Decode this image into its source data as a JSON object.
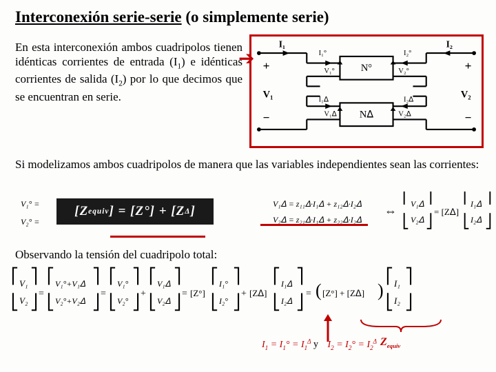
{
  "title_underlined": "Interconexión serie-serie",
  "title_rest": " (o simplemente serie)",
  "para1_html": "En esta interconexión ambos cuadripolos tienen idénticas corrientes de entrada (I<sub>1</sub>) e idénticas corrientes de salida (I<sub>2</sub>) por lo que decimos que se encuentran en serie.",
  "para2_html": "Si modelizamos ambos cuadripolos de manera que las variables independientes sean las corrientes:",
  "obs": "Observando la tensión del cuadripolo total:",
  "zeq_box": "[Z<sub>equiv</sub>] = [Z°] + [Z<sup>Δ</sup>]",
  "zeq_red": "Z<sub>equiv</sub>",
  "footer_i1": "I<sub>1</sub> = I<sub>1</sub>° = I<sub>1</sub><sup>Δ</sup>",
  "footer_y": " y ",
  "footer_i2": "I<sub>2</sub> = I<sub>2</sub>° = I<sub>2</sub><sup>Δ</sup>",
  "diagram": {
    "labels": {
      "I1": "I₁",
      "I2": "I₂",
      "I1o": "I₁°",
      "I2o": "I₂°",
      "I1d": "I₁ᐃ",
      "I2d": "I₂ᐃ",
      "V1": "V₁",
      "V2": "V₂",
      "V1o": "V₁°",
      "V2o": "V₂°",
      "V1d": "V₁ᐃ",
      "V2d": "V₂ᐃ",
      "No": "N°",
      "Nd": "Nᐃ"
    },
    "colors": {
      "wire": "#000",
      "label": "#000",
      "frame": "#c00000"
    }
  },
  "equations": {
    "row1": {
      "left_tiny": [
        "V₁° =",
        "V₂° ="
      ],
      "mid": [
        "V₁ᐃ = z₁₁ᐃ·I₁ᐃ + z₁₂ᐃ·I₂ᐃ",
        "V₂ᐃ = z₂₁ᐃ·I₁ᐃ + z₂₂ᐃ·I₂ᐃ"
      ],
      "right": "[V₁ᐃ; V₂ᐃ] = [Zᐃ]·[I₁ᐃ; I₂ᐃ]",
      "iff": "⇔"
    },
    "row2": "[V₁;V₂] = [V₁°+V₁ᐃ; V₂°+V₂ᐃ] = [V₁°;V₂°] + [V₁ᐃ;V₂ᐃ] = [Z°]·[I₁°;I₂°] + [Zᐃ]·[I₁ᐃ;I₂ᐃ] = ([Z°]+[Zᐃ])·[I₁;I₂]"
  },
  "colors": {
    "accent": "#c00000",
    "text": "#000000",
    "bg": "#fdfdfc",
    "dark": "#1a1a1a"
  }
}
